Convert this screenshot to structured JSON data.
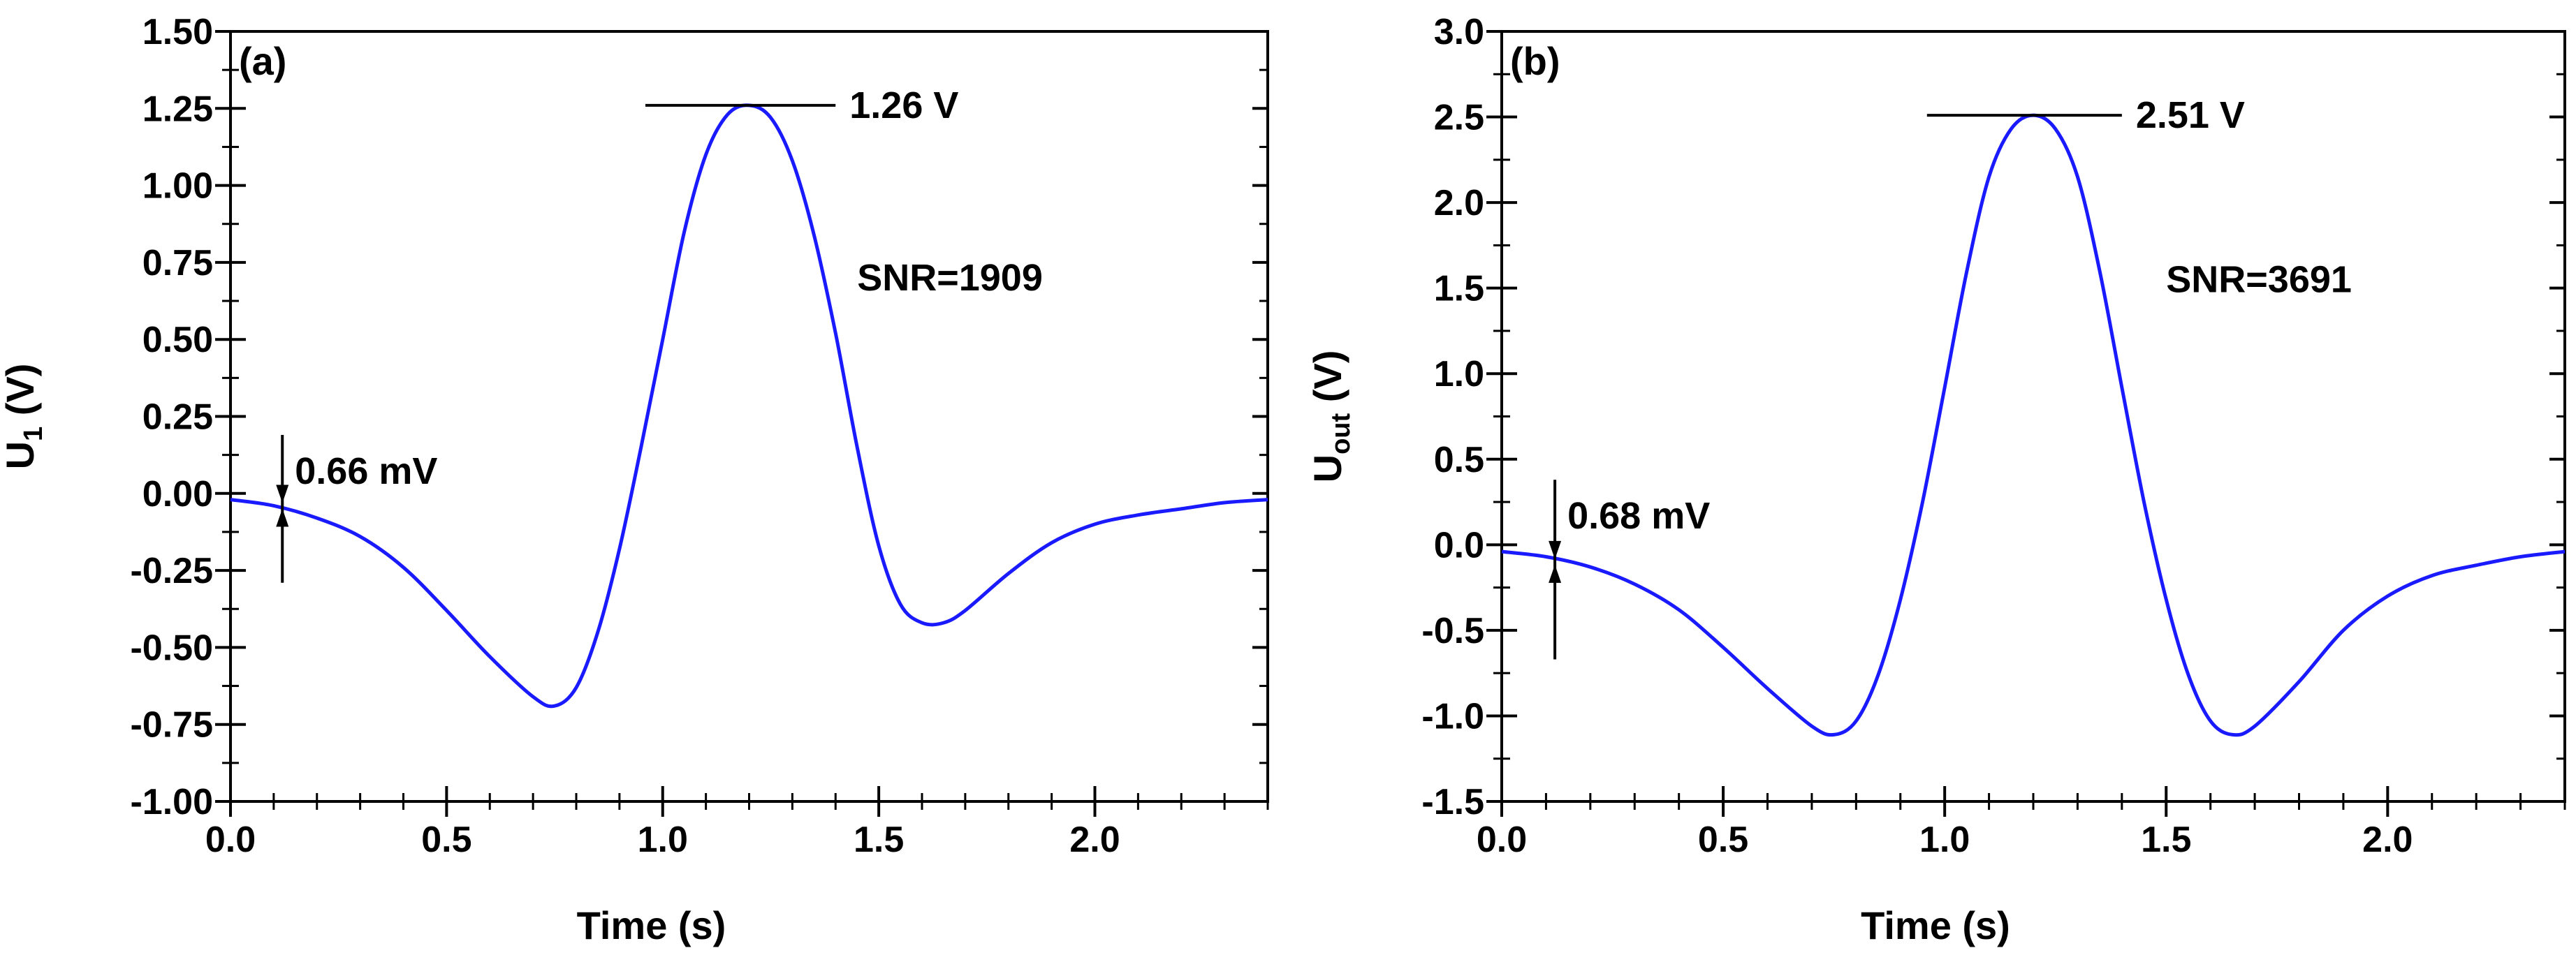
{
  "chart_data": [
    {
      "type": "line",
      "panel_label": "(a)",
      "xlabel": "Time (s)",
      "ylabel": {
        "main": "U",
        "sub": "1",
        "unit": " (V)"
      },
      "xlim": [
        0,
        2.4
      ],
      "ylim": [
        -1.0,
        1.5
      ],
      "xticks": [
        0.0,
        0.5,
        1.0,
        1.5,
        2.0
      ],
      "xtick_labels": [
        "0.0",
        "0.5",
        "1.0",
        "1.5",
        "2.0"
      ],
      "yticks": [
        -1.0,
        -0.75,
        -0.5,
        -0.25,
        0.0,
        0.25,
        0.5,
        0.75,
        1.0,
        1.25,
        1.5
      ],
      "ytick_labels": [
        "-1.00",
        "-0.75",
        "-0.50",
        "-0.25",
        "0.00",
        "0.25",
        "0.50",
        "0.75",
        "1.00",
        "1.25",
        "1.50"
      ],
      "series": [
        {
          "name": "U1",
          "color": "#1a1aff",
          "points": [
            [
              0.0,
              -0.02
            ],
            [
              0.1,
              -0.04
            ],
            [
              0.2,
              -0.08
            ],
            [
              0.3,
              -0.14
            ],
            [
              0.4,
              -0.24
            ],
            [
              0.5,
              -0.38
            ],
            [
              0.6,
              -0.53
            ],
            [
              0.7,
              -0.66
            ],
            [
              0.75,
              -0.69
            ],
            [
              0.8,
              -0.63
            ],
            [
              0.85,
              -0.45
            ],
            [
              0.9,
              -0.18
            ],
            [
              0.95,
              0.15
            ],
            [
              1.0,
              0.5
            ],
            [
              1.05,
              0.85
            ],
            [
              1.1,
              1.1
            ],
            [
              1.15,
              1.23
            ],
            [
              1.2,
              1.26
            ],
            [
              1.25,
              1.22
            ],
            [
              1.3,
              1.08
            ],
            [
              1.35,
              0.84
            ],
            [
              1.4,
              0.52
            ],
            [
              1.45,
              0.15
            ],
            [
              1.5,
              -0.17
            ],
            [
              1.55,
              -0.36
            ],
            [
              1.6,
              -0.42
            ],
            [
              1.65,
              -0.42
            ],
            [
              1.7,
              -0.38
            ],
            [
              1.8,
              -0.26
            ],
            [
              1.9,
              -0.16
            ],
            [
              2.0,
              -0.1
            ],
            [
              2.1,
              -0.07
            ],
            [
              2.2,
              -0.05
            ],
            [
              2.3,
              -0.03
            ],
            [
              2.4,
              -0.02
            ]
          ]
        }
      ],
      "annotations": {
        "peak_label": "1.26 V",
        "peak": {
          "x_start": 0.96,
          "x_end": 1.4,
          "y": 1.26
        },
        "snr_label": "SNR=1909",
        "snr_pos": {
          "x": 1.45,
          "y": 0.7
        },
        "noise_label": "0.66 mV",
        "noise_marker": {
          "x": 0.12,
          "y_top": 0.19,
          "y_mid": -0.04,
          "y_bottom": -0.29
        }
      }
    },
    {
      "type": "line",
      "panel_label": "(b)",
      "xlabel": "Time (s)",
      "ylabel": {
        "main": "U",
        "sub": "out",
        "unit": " (V)"
      },
      "xlim": [
        0,
        2.4
      ],
      "ylim": [
        -1.5,
        3.0
      ],
      "xticks": [
        0.0,
        0.5,
        1.0,
        1.5,
        2.0
      ],
      "xtick_labels": [
        "0.0",
        "0.5",
        "1.0",
        "1.5",
        "2.0"
      ],
      "yticks": [
        -1.5,
        -1.0,
        -0.5,
        0.0,
        0.5,
        1.0,
        1.5,
        2.0,
        2.5,
        3.0
      ],
      "ytick_labels": [
        "-1.5",
        "-1.0",
        "-0.5",
        "0.0",
        "0.5",
        "1.0",
        "1.5",
        "2.0",
        "2.5",
        "3.0"
      ],
      "series": [
        {
          "name": "Uout",
          "color": "#1a1aff",
          "points": [
            [
              0.0,
              -0.04
            ],
            [
              0.1,
              -0.07
            ],
            [
              0.2,
              -0.13
            ],
            [
              0.3,
              -0.23
            ],
            [
              0.4,
              -0.38
            ],
            [
              0.5,
              -0.6
            ],
            [
              0.6,
              -0.84
            ],
            [
              0.7,
              -1.06
            ],
            [
              0.75,
              -1.11
            ],
            [
              0.8,
              -1.03
            ],
            [
              0.85,
              -0.76
            ],
            [
              0.9,
              -0.32
            ],
            [
              0.95,
              0.25
            ],
            [
              1.0,
              0.92
            ],
            [
              1.05,
              1.6
            ],
            [
              1.1,
              2.15
            ],
            [
              1.15,
              2.43
            ],
            [
              1.2,
              2.51
            ],
            [
              1.25,
              2.43
            ],
            [
              1.3,
              2.15
            ],
            [
              1.35,
              1.6
            ],
            [
              1.4,
              0.92
            ],
            [
              1.45,
              0.25
            ],
            [
              1.5,
              -0.32
            ],
            [
              1.55,
              -0.76
            ],
            [
              1.6,
              -1.03
            ],
            [
              1.65,
              -1.11
            ],
            [
              1.7,
              -1.06
            ],
            [
              1.8,
              -0.8
            ],
            [
              1.9,
              -0.5
            ],
            [
              2.0,
              -0.3
            ],
            [
              2.1,
              -0.18
            ],
            [
              2.2,
              -0.12
            ],
            [
              2.3,
              -0.07
            ],
            [
              2.4,
              -0.04
            ]
          ]
        }
      ],
      "annotations": {
        "peak_label": "2.51 V",
        "peak": {
          "x_start": 0.96,
          "x_end": 1.4,
          "y": 2.51
        },
        "snr_label": "SNR=3691",
        "snr_pos": {
          "x": 1.5,
          "y": 1.55
        },
        "noise_label": "0.68 mV",
        "noise_marker": {
          "x": 0.12,
          "y_top": 0.38,
          "y_mid": -0.1,
          "y_bottom": -0.67
        }
      }
    }
  ]
}
